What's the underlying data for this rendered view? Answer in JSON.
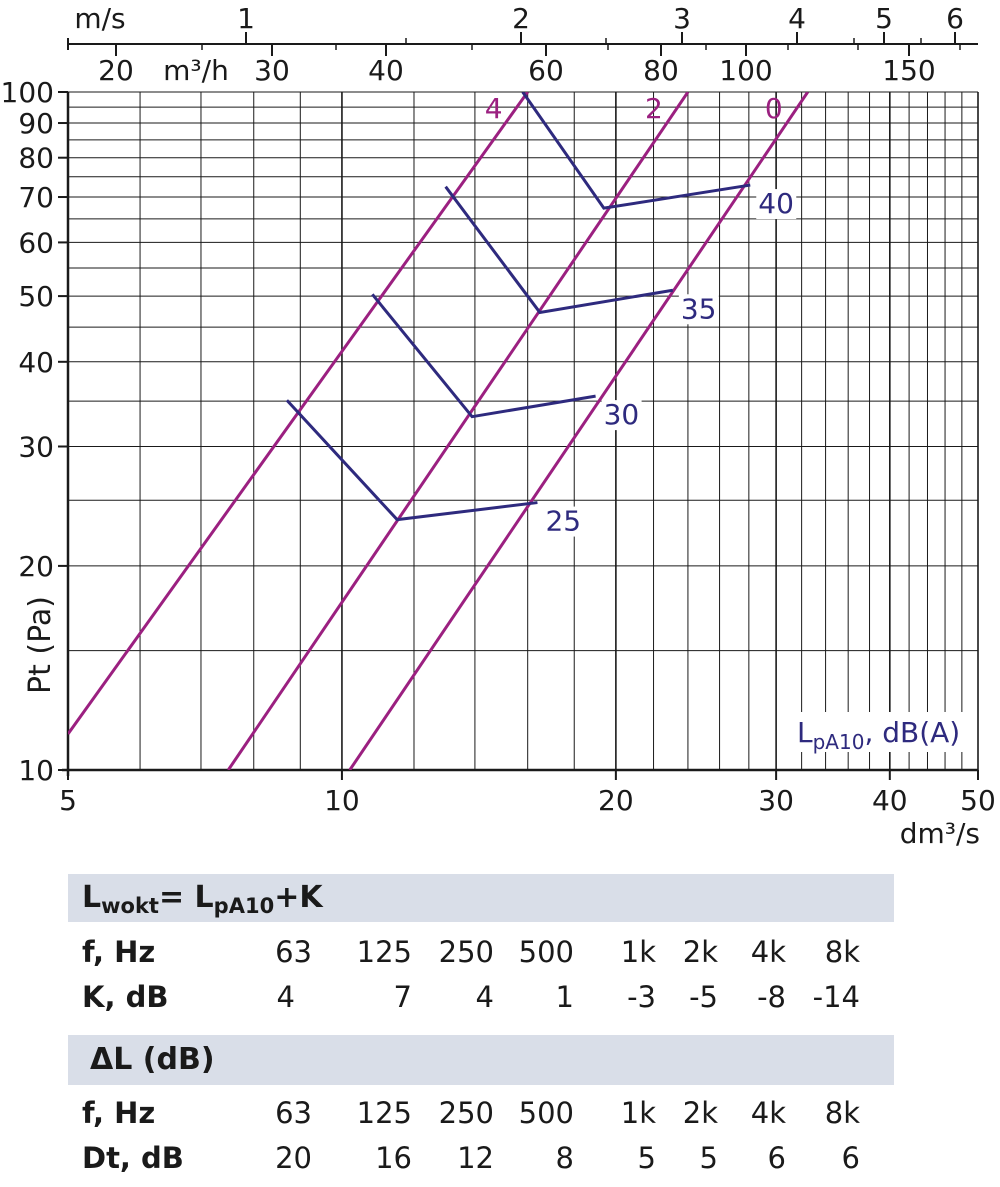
{
  "chart_data": {
    "type": "line",
    "x_axis": {
      "label": "dm³/s",
      "scale": "log",
      "range": [
        5,
        50
      ],
      "tick_labels": [
        "5",
        "10",
        "20",
        "30",
        "40",
        "50"
      ]
    },
    "y_axis": {
      "label": "Pt (Pa)",
      "scale": "log",
      "range": [
        10,
        100
      ],
      "tick_labels": [
        "10",
        "20",
        "30",
        "40",
        "50",
        "60",
        "70",
        "80",
        "90",
        "100"
      ]
    },
    "top_axis_velocity": {
      "unit": "m/s",
      "tick_labels": [
        "1",
        "2",
        "3",
        "4",
        "5",
        "6"
      ]
    },
    "top_axis_flow": {
      "unit": "m³/h",
      "tick_labels": [
        "20",
        "30",
        "40",
        "60",
        "80",
        "100",
        "150"
      ]
    },
    "grid": true,
    "series": [
      {
        "name": "0",
        "color": "#9b2080",
        "points": [
          [
            10.2,
            10
          ],
          [
            32.5,
            100
          ]
        ]
      },
      {
        "name": "2",
        "color": "#9b2080",
        "points": [
          [
            7.5,
            10
          ],
          [
            24.0,
            100
          ]
        ]
      },
      {
        "name": "4",
        "color": "#9b2080",
        "points": [
          [
            5.0,
            11.3
          ],
          [
            16.0,
            100
          ]
        ]
      }
    ],
    "noise_curves": [
      {
        "name": "25",
        "color": "#2e2a7e",
        "points": [
          [
            8.7,
            35.1
          ],
          [
            11.5,
            23.4
          ],
          [
            16.4,
            24.8
          ]
        ]
      },
      {
        "name": "30",
        "color": "#2e2a7e",
        "points": [
          [
            10.8,
            50.3
          ],
          [
            13.9,
            33.2
          ],
          [
            19.0,
            35.6
          ]
        ]
      },
      {
        "name": "35",
        "color": "#2e2a7e",
        "points": [
          [
            13.0,
            72.5
          ],
          [
            16.5,
            47.3
          ],
          [
            23.1,
            51.0
          ]
        ]
      },
      {
        "name": "40",
        "color": "#2e2a7e",
        "points": [
          [
            15.8,
            100
          ],
          [
            19.4,
            67.4
          ],
          [
            28.1,
            72.9
          ]
        ]
      }
    ],
    "noise_legend": "LpA10, dB(A)"
  },
  "formula": {
    "l": "L",
    "sub1": "wokt",
    "mid": "= L",
    "sub2": "pA10",
    "tail": "+K"
  },
  "table1": {
    "freq_label": "f, Hz",
    "freqs": [
      "63",
      "125",
      "250",
      "500",
      "1k",
      "2k",
      "4k",
      "8k"
    ],
    "k_label": "K, dB",
    "k_values": [
      "4",
      "7",
      "4",
      "1",
      "-3",
      "-5",
      "-8",
      "-14"
    ]
  },
  "table2": {
    "title": "ΔL (dB)",
    "freq_label": "f, Hz",
    "freqs": [
      "63",
      "125",
      "250",
      "500",
      "1k",
      "2k",
      "4k",
      "8k"
    ],
    "dt_label": "Dt, dB",
    "dt_values": [
      "20",
      "16",
      "12",
      "8",
      "5",
      "5",
      "6",
      "6"
    ]
  }
}
